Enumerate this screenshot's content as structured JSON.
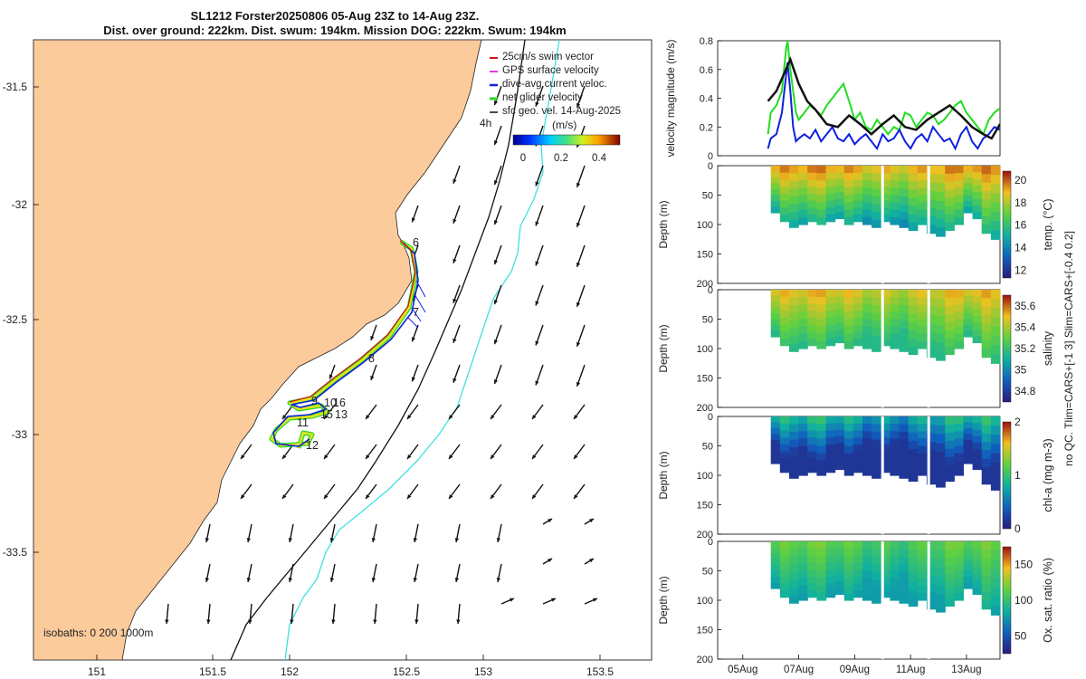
{
  "title_line1": "SL1212 Forster20250806 05-Aug 23Z to 14-Aug 23Z.",
  "title_line2": "Dist. over ground: 222km. Dist. swum: 194km. Mission DOG: 222km. Swum: 194km",
  "map": {
    "x_ticks": [
      "151",
      "151.5",
      "152",
      "152.5",
      "153",
      "153.5"
    ],
    "y_ticks": [
      "-31.5",
      "-32",
      "-32.5",
      "-33",
      "-33.5"
    ],
    "legend": [
      "25cm/s swim vector",
      "GPS surface velocity",
      "dive-avg current veloc.",
      "net glider velocity",
      "sfc geo. vel. 14-Aug-2025"
    ],
    "colorbar_unit": "(m/s)",
    "colorbar_ticks": [
      "0",
      "0.2",
      "0.4"
    ],
    "hour_label": "4h",
    "isobaths": "isobaths: 0    200 1000m",
    "waypoint_labels": [
      {
        "id": "wp6",
        "text": "6"
      },
      {
        "id": "wp7",
        "text": "7"
      },
      {
        "id": "wp8",
        "text": "8"
      },
      {
        "id": "wp9",
        "text": "9"
      },
      {
        "id": "wp10",
        "text": "10"
      },
      {
        "id": "wp16",
        "text": "16"
      },
      {
        "id": "wp11",
        "text": "11"
      },
      {
        "id": "wp15",
        "text": "15"
      },
      {
        "id": "wp13",
        "text": "13"
      },
      {
        "id": "wp12",
        "text": "12"
      }
    ],
    "colors": {
      "land": "#fccb9c",
      "track_green": "#22dd22",
      "track_blue": "#1020e0",
      "track_red": "#d01010",
      "isobath_200": "#40e0e0",
      "isobath_1000": "#111111"
    }
  },
  "chart_data": [
    {
      "type": "line",
      "ylabel": "velocity magnitude (m/s)",
      "ylim": [
        0,
        0.8
      ],
      "y_ticks": [
        "0",
        "0.2",
        "0.4",
        "0.6",
        "0.8"
      ],
      "x_ticks": [
        "05Aug",
        "07Aug",
        "09Aug",
        "11Aug",
        "13Aug"
      ],
      "x_days": [
        4.1,
        14.2
      ],
      "series": [
        {
          "name": "net glider velocity",
          "color": "#22dd22",
          "x": [
            5.9,
            6.0,
            6.2,
            6.4,
            6.55,
            6.6,
            6.7,
            6.8,
            6.9,
            7.0,
            7.2,
            7.4,
            7.6,
            7.8,
            8.0,
            8.2,
            8.4,
            8.6,
            8.8,
            9.0,
            9.2,
            9.4,
            9.6,
            9.8,
            10.0,
            10.2,
            10.4,
            10.6,
            10.8,
            11.0,
            11.2,
            11.4,
            11.6,
            11.8,
            12.0,
            12.2,
            12.4,
            12.6,
            12.8,
            13.0,
            13.2,
            13.4,
            13.6,
            13.8,
            14.0,
            14.2
          ],
          "y": [
            0.15,
            0.3,
            0.35,
            0.45,
            0.75,
            0.8,
            0.6,
            0.45,
            0.3,
            0.25,
            0.3,
            0.35,
            0.32,
            0.28,
            0.35,
            0.4,
            0.45,
            0.5,
            0.38,
            0.25,
            0.3,
            0.2,
            0.18,
            0.25,
            0.2,
            0.15,
            0.2,
            0.18,
            0.3,
            0.28,
            0.2,
            0.25,
            0.3,
            0.28,
            0.22,
            0.25,
            0.3,
            0.35,
            0.38,
            0.3,
            0.25,
            0.2,
            0.15,
            0.25,
            0.3,
            0.33
          ]
        },
        {
          "name": "dive-avg current veloc.",
          "color": "#1020e0",
          "x": [
            5.9,
            6.0,
            6.2,
            6.4,
            6.6,
            6.7,
            6.8,
            6.9,
            7.0,
            7.2,
            7.4,
            7.6,
            7.8,
            8.0,
            8.2,
            8.4,
            8.6,
            8.8,
            9.0,
            9.2,
            9.4,
            9.6,
            9.8,
            10.0,
            10.2,
            10.4,
            10.6,
            10.8,
            11.0,
            11.2,
            11.4,
            11.6,
            11.8,
            12.0,
            12.2,
            12.4,
            12.6,
            12.8,
            13.0,
            13.2,
            13.4,
            13.6,
            13.8,
            14.0,
            14.2
          ],
          "y": [
            0.05,
            0.12,
            0.15,
            0.3,
            0.65,
            0.45,
            0.2,
            0.1,
            0.12,
            0.15,
            0.12,
            0.18,
            0.1,
            0.15,
            0.2,
            0.12,
            0.1,
            0.15,
            0.08,
            0.12,
            0.15,
            0.1,
            0.05,
            0.15,
            0.1,
            0.12,
            0.18,
            0.1,
            0.05,
            0.12,
            0.15,
            0.1,
            0.2,
            0.15,
            0.1,
            0.12,
            0.05,
            0.15,
            0.2,
            0.1,
            0.05,
            0.12,
            0.15,
            0.2,
            0.18
          ]
        },
        {
          "name": "smoothed",
          "color": "#111111",
          "x": [
            5.9,
            6.2,
            6.5,
            6.7,
            7.0,
            7.3,
            7.6,
            8.0,
            8.4,
            8.8,
            9.2,
            9.6,
            10.0,
            10.4,
            10.8,
            11.2,
            11.6,
            12.0,
            12.4,
            12.8,
            13.2,
            13.6,
            13.9,
            14.2
          ],
          "y": [
            0.38,
            0.45,
            0.58,
            0.67,
            0.5,
            0.38,
            0.32,
            0.22,
            0.2,
            0.28,
            0.22,
            0.15,
            0.22,
            0.28,
            0.2,
            0.18,
            0.25,
            0.3,
            0.35,
            0.28,
            0.2,
            0.15,
            0.12,
            0.22
          ]
        }
      ]
    },
    {
      "type": "heatmap",
      "ylabel": "Depth (m)",
      "ylim": [
        0,
        200
      ],
      "y_ticks": [
        "0",
        "50",
        "100",
        "150",
        "200"
      ],
      "colorbar_label": "temp. (°C)",
      "colorbar_ticks": [
        "12",
        "14",
        "16",
        "18",
        "20"
      ],
      "clim": [
        11.3,
        20.8
      ],
      "bottom_depths": [
        80,
        95,
        105,
        100,
        95,
        100,
        95,
        90,
        100,
        95,
        100,
        105,
        95,
        100,
        105,
        110,
        100,
        115,
        120,
        110,
        100,
        80,
        90,
        115,
        125
      ]
    },
    {
      "type": "heatmap",
      "ylabel": "Depth (m)",
      "ylim": [
        0,
        200
      ],
      "y_ticks": [
        "0",
        "50",
        "100",
        "150",
        "200"
      ],
      "colorbar_label": "salinity",
      "colorbar_ticks": [
        "34.8",
        "35",
        "35.2",
        "35.4",
        "35.6"
      ],
      "clim": [
        34.7,
        35.7
      ],
      "bottom_depths": [
        80,
        95,
        105,
        100,
        95,
        100,
        95,
        90,
        100,
        95,
        100,
        105,
        95,
        100,
        105,
        110,
        100,
        115,
        120,
        110,
        100,
        80,
        90,
        115,
        125
      ]
    },
    {
      "type": "heatmap",
      "ylabel": "Depth (m)",
      "ylim": [
        0,
        200
      ],
      "y_ticks": [
        "0",
        "50",
        "100",
        "150",
        "200"
      ],
      "colorbar_label": "chl-a (mg m-3)",
      "colorbar_ticks": [
        "0",
        "1",
        "2"
      ],
      "clim": [
        0,
        2
      ],
      "bottom_depths": [
        80,
        95,
        105,
        100,
        95,
        100,
        95,
        90,
        100,
        95,
        100,
        105,
        95,
        100,
        105,
        110,
        100,
        115,
        120,
        110,
        100,
        80,
        90,
        115,
        125
      ]
    },
    {
      "type": "heatmap",
      "ylabel": "Depth (m)",
      "ylim": [
        0,
        200
      ],
      "y_ticks": [
        "0",
        "50",
        "100",
        "150",
        "200"
      ],
      "colorbar_label": "Ox. sat. ratio (%)",
      "colorbar_ticks": [
        "50",
        "100",
        "150"
      ],
      "clim": [
        25,
        175
      ],
      "bottom_depths": [
        80,
        95,
        105,
        100,
        95,
        100,
        95,
        90,
        100,
        95,
        100,
        105,
        95,
        100,
        105,
        110,
        100,
        115,
        120,
        110,
        100,
        80,
        90,
        115,
        125
      ]
    }
  ],
  "side_note": "no QC. Tlim=CARS+[-1 3] Slim=CARS+[-0.4 0.2]"
}
